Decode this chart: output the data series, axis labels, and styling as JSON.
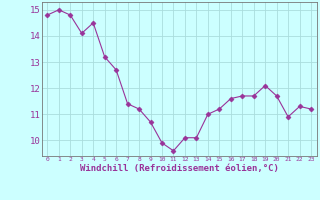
{
  "x": [
    0,
    1,
    2,
    3,
    4,
    5,
    6,
    7,
    8,
    9,
    10,
    11,
    12,
    13,
    14,
    15,
    16,
    17,
    18,
    19,
    20,
    21,
    22,
    23
  ],
  "y": [
    14.8,
    15.0,
    14.8,
    14.1,
    14.5,
    13.2,
    12.7,
    11.4,
    11.2,
    10.7,
    9.9,
    9.6,
    10.1,
    10.1,
    11.0,
    11.2,
    11.6,
    11.7,
    11.7,
    12.1,
    11.7,
    10.9,
    11.3,
    11.2
  ],
  "line_color": "#993399",
  "marker": "D",
  "marker_size": 2.5,
  "bg_color": "#ccffff",
  "grid_color": "#aadddd",
  "xlabel": "Windchill (Refroidissement éolien,°C)",
  "ylabel_ticks": [
    10,
    11,
    12,
    13,
    14,
    15
  ],
  "ylim": [
    9.4,
    15.3
  ],
  "xlim": [
    -0.5,
    23.5
  ],
  "tick_color": "#993399",
  "label_color": "#993399",
  "xlabel_fontsize": 6.5,
  "ylabel_fontsize": 7
}
